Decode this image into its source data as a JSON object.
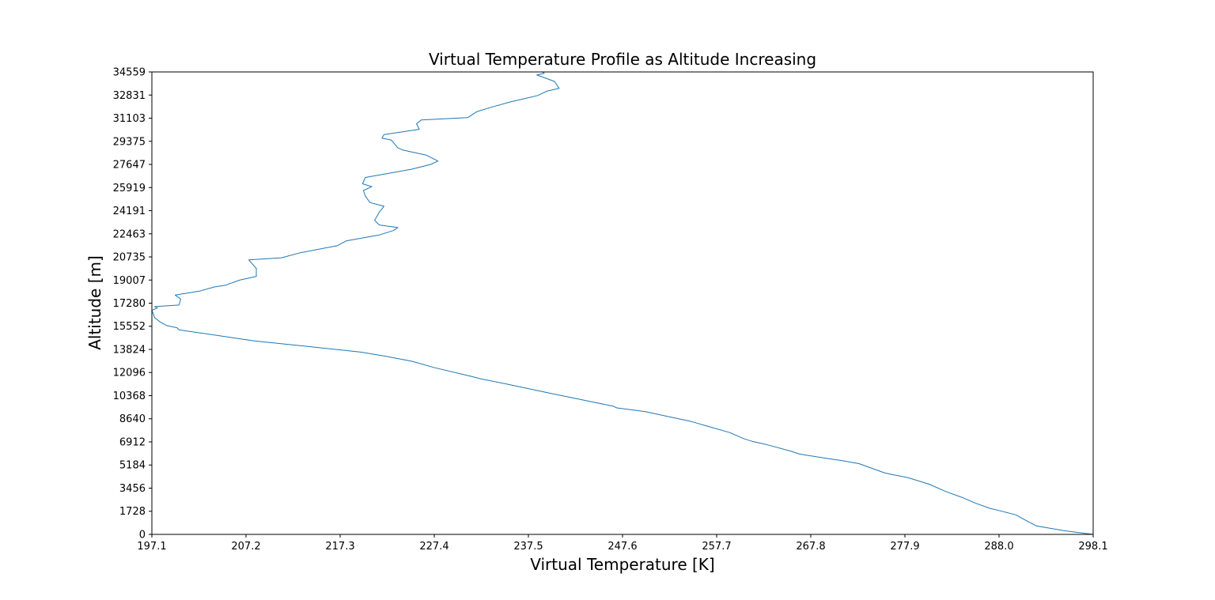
{
  "chart_data": {
    "type": "line",
    "title": "Virtual Temperature Profile as Altitude Increasing",
    "xlabel": "Virtual Temperature [K]",
    "ylabel": "Altitude [m]",
    "xlim": [
      197.1,
      298.1
    ],
    "ylim": [
      0,
      34559
    ],
    "x_ticks": [
      "197.1",
      "207.2",
      "217.3",
      "227.4",
      "237.5",
      "247.6",
      "257.7",
      "267.8",
      "277.9",
      "288.0",
      "298.1"
    ],
    "y_ticks": [
      "0",
      "1728",
      "3456",
      "5184",
      "6912",
      "8640",
      "10368",
      "12096",
      "13824",
      "15552",
      "17280",
      "19007",
      "20735",
      "22463",
      "24191",
      "25919",
      "27647",
      "29375",
      "31103",
      "32831",
      "34559"
    ],
    "grid": false,
    "line_color": "#1f77b4",
    "series": [
      {
        "x": [
          298.1,
          295.0,
          292.0,
          291.0,
          289.8,
          288.3,
          287.0,
          285.4,
          284.0,
          282.3,
          280.5,
          278.2,
          276.5,
          275.7,
          273.0,
          271.0,
          269.8,
          266.6,
          265.7,
          263.0,
          261.5,
          260.7,
          259.1,
          255.0,
          250.0,
          247.0,
          246.6,
          240.0,
          235.0,
          232.5,
          231.2,
          227.5,
          225.0,
          222.0,
          219.5,
          213.0,
          208.0,
          200.0,
          199.8,
          198.7,
          198.0,
          197.4,
          197.1,
          197.7,
          197.4,
          200.0,
          200.2,
          199.6,
          202.2,
          203.8,
          205.0,
          206.5,
          208.3,
          208.3,
          207.5,
          211.0,
          213.0,
          217.0,
          218.0,
          221.5,
          223.0,
          223.5,
          221.5,
          221.0,
          221.5,
          222.0,
          220.5,
          220.0,
          219.8,
          220.7,
          219.7,
          220.0,
          225.0,
          227.0,
          227.8,
          226.5,
          224.0,
          223.5,
          222.8,
          221.8,
          222.0,
          225.8,
          225.5,
          226.0,
          231.0,
          232.0,
          233.5,
          235.5,
          237.0,
          238.5,
          239.5,
          240.8,
          240.3,
          239.0,
          238.4,
          239.2,
          239.0
        ],
        "y": [
          0,
          270,
          640,
          1000,
          1460,
          1730,
          1950,
          2350,
          2770,
          3200,
          3750,
          4250,
          4480,
          4600,
          5280,
          5530,
          5650,
          6000,
          6210,
          6720,
          6960,
          7130,
          7610,
          8430,
          9180,
          9450,
          9580,
          10520,
          11260,
          11610,
          11840,
          12450,
          12940,
          13340,
          13620,
          14110,
          14470,
          15290,
          15440,
          15600,
          15870,
          16200,
          16740,
          16920,
          17020,
          17140,
          17580,
          17880,
          18180,
          18490,
          18620,
          19000,
          19280,
          19880,
          20510,
          20670,
          21040,
          21580,
          21940,
          22380,
          22700,
          22930,
          23120,
          23470,
          24080,
          24520,
          24800,
          25290,
          25700,
          25990,
          26200,
          26670,
          27290,
          27650,
          27900,
          28350,
          28730,
          28880,
          29460,
          29610,
          29880,
          30270,
          30690,
          30970,
          31150,
          31600,
          31920,
          32310,
          32550,
          32800,
          33130,
          33330,
          33850,
          34180,
          34330,
          34450,
          34559
        ]
      }
    ]
  }
}
